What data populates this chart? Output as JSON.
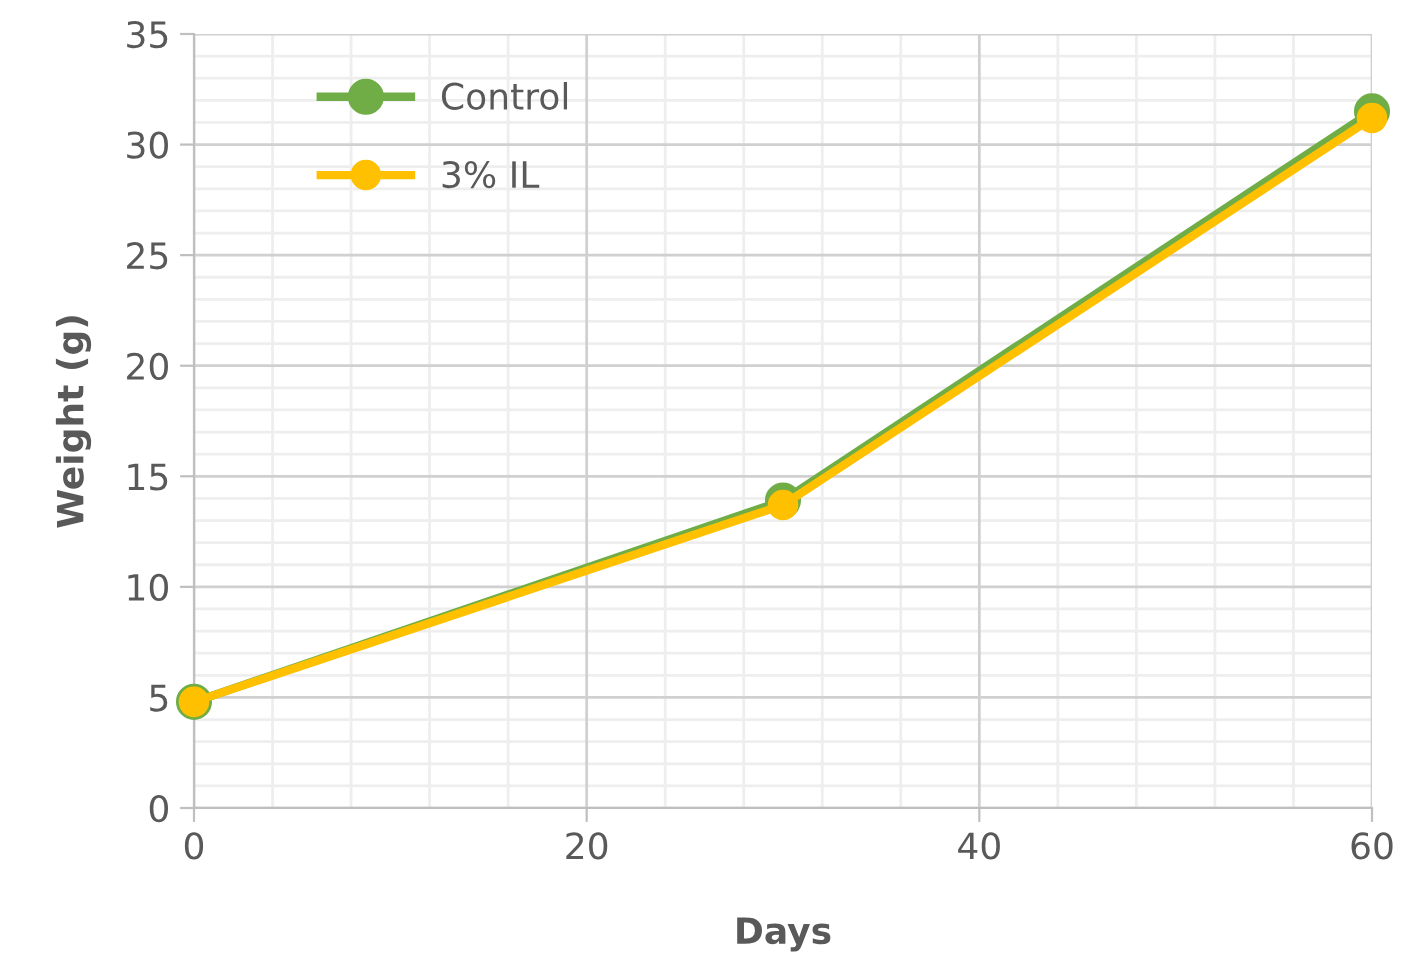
{
  "chart_data": {
    "type": "line",
    "xlabel": "Days",
    "ylabel": "Weight (g)",
    "x": [
      0,
      30,
      60
    ],
    "series": [
      {
        "name": "Control",
        "color": "#70ad47",
        "values": [
          4.8,
          13.9,
          31.5
        ]
      },
      {
        "name": "3% IL",
        "color": "#ffc000",
        "values": [
          4.8,
          13.7,
          31.2
        ]
      }
    ],
    "xlim": [
      0,
      60
    ],
    "xticks": [
      0,
      20,
      40,
      60
    ],
    "ylim": [
      0,
      35
    ],
    "yticks": [
      0,
      5,
      10,
      15,
      20,
      25,
      30,
      35
    ],
    "grid": true,
    "legend": "top left",
    "marker": "circle",
    "line_style": "solid"
  }
}
